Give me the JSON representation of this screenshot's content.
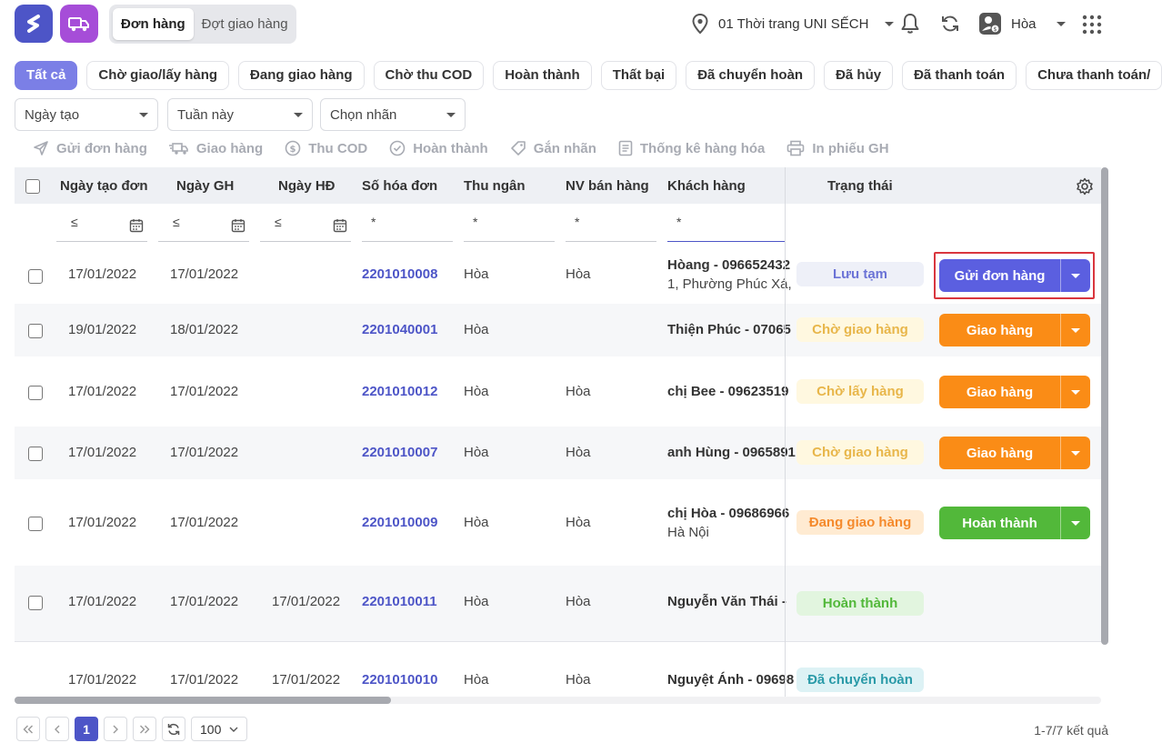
{
  "header": {
    "tabs": [
      {
        "label": "Đơn hàng",
        "active": true
      },
      {
        "label": "Đợt giao hàng",
        "active": false
      }
    ],
    "store_name": "01 Thời trang UNI SẾCH",
    "user_name": "Hòa"
  },
  "status_tabs": [
    "Tất cả",
    "Chờ giao/lấy hàng",
    "Đang giao hàng",
    "Chờ thu COD",
    "Hoàn thành",
    "Thất bại",
    "Đã chuyển hoàn",
    "Đã hủy",
    "Đã thanh toán",
    "Chưa thanh toán/"
  ],
  "filters": {
    "date_type": "Ngày tạo",
    "period": "Tuần này",
    "label": "Chọn nhãn"
  },
  "actions": {
    "send_order": "Gửi đơn hàng",
    "deliver": "Giao hàng",
    "collect_cod": "Thu COD",
    "complete": "Hoàn thành",
    "tag": "Gắn nhãn",
    "goods_stats": "Thống kê hàng hóa",
    "print_slip": "In phiếu GH"
  },
  "table": {
    "columns": {
      "created": "Ngày tạo đơn",
      "delivery": "Ngày GH",
      "invoice_date": "Ngày HĐ",
      "invoice_no": "Số hóa đơn",
      "cashier": "Thu ngân",
      "seller": "NV bán hàng",
      "customer": "Khách hàng",
      "status": "Trạng thái"
    },
    "filter_row": {
      "date_op": "≤",
      "text_op": "*"
    },
    "rows": [
      {
        "created": "17/01/2022",
        "delivery": "17/01/2022",
        "invoice_date": "",
        "invoice_no": "2201010008",
        "cashier": "Hòa",
        "seller": "Hòa",
        "customer": "Hòang - 096652432",
        "address": "1, Phường Phúc Xá,",
        "status": "Lưu tạm",
        "action": "Gửi đơn hàng"
      },
      {
        "created": "19/01/2022",
        "delivery": "18/01/2022",
        "invoice_date": "",
        "invoice_no": "2201040001",
        "cashier": "Hòa",
        "seller": "",
        "customer": "Thiện Phúc - 07065",
        "address": "",
        "status": "Chờ giao hàng",
        "action": "Giao hàng"
      },
      {
        "created": "17/01/2022",
        "delivery": "17/01/2022",
        "invoice_date": "",
        "invoice_no": "2201010012",
        "cashier": "Hòa",
        "seller": "Hòa",
        "customer": "chị Bee - 09623519",
        "address": "",
        "status": "Chờ lấy hàng",
        "action": "Giao hàng"
      },
      {
        "created": "17/01/2022",
        "delivery": "17/01/2022",
        "invoice_date": "",
        "invoice_no": "2201010007",
        "cashier": "Hòa",
        "seller": "Hòa",
        "customer": "anh Hùng - 0965891",
        "address": "",
        "status": "Chờ giao hàng",
        "action": "Giao hàng"
      },
      {
        "created": "17/01/2022",
        "delivery": "17/01/2022",
        "invoice_date": "",
        "invoice_no": "2201010009",
        "cashier": "Hòa",
        "seller": "Hòa",
        "customer": "chị Hòa - 09686966",
        "address": "Hà Nội",
        "status": "Đang giao hàng",
        "action": "Hoàn thành"
      },
      {
        "created": "17/01/2022",
        "delivery": "17/01/2022",
        "invoice_date": "17/01/2022",
        "invoice_no": "2201010011",
        "cashier": "Hòa",
        "seller": "Hòa",
        "customer": "Nguyễn Văn Thái -",
        "address": "",
        "status": "Hoàn thành",
        "action": ""
      },
      {
        "created": "17/01/2022",
        "delivery": "17/01/2022",
        "invoice_date": "17/01/2022",
        "invoice_no": "2201010010",
        "cashier": "Hòa",
        "seller": "Hòa",
        "customer": "Nguyệt Ánh - 09698",
        "address": "",
        "status": "Đã chuyển hoàn",
        "action": ""
      }
    ]
  },
  "colors": {
    "primary": "#4d55c7",
    "send_button": "#5b5fe0",
    "deliver_button": "#fa8c16",
    "complete_button": "#52b83a",
    "highlight": "#d9363e"
  },
  "pagination": {
    "current_page": "1",
    "page_size": "100",
    "summary": "1-7/7 kết quả"
  }
}
